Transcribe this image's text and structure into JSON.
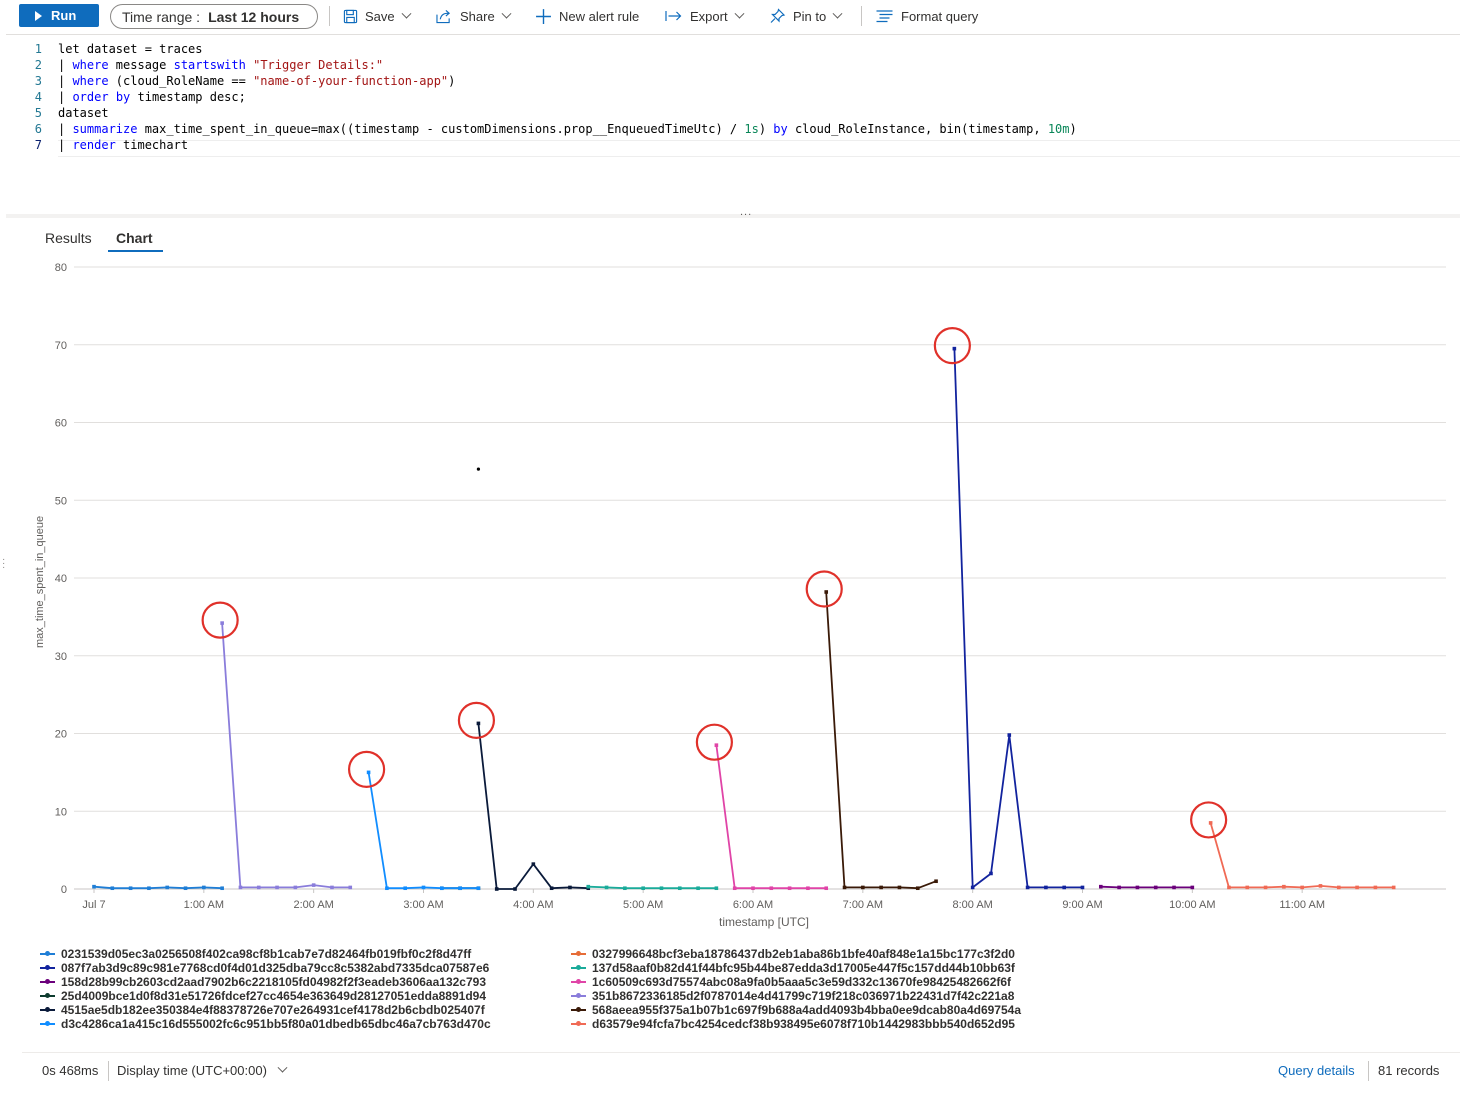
{
  "toolbar": {
    "run_label": "Run",
    "time_range_label": "Time range :",
    "time_range_value": "Last 12 hours",
    "save_label": "Save",
    "share_label": "Share",
    "new_alert_label": "New alert rule",
    "export_label": "Export",
    "pin_label": "Pin to",
    "format_label": "Format query"
  },
  "editor": {
    "line_numbers": [
      "1",
      "2",
      "3",
      "4",
      "5",
      "6",
      "7"
    ],
    "lines": [
      [
        {
          "t": "let dataset = traces",
          "c": "plain"
        }
      ],
      [
        {
          "t": "| ",
          "c": "plain"
        },
        {
          "t": "where",
          "c": "kw"
        },
        {
          "t": " message ",
          "c": "plain"
        },
        {
          "t": "startswith",
          "c": "kw"
        },
        {
          "t": " ",
          "c": "plain"
        },
        {
          "t": "\"Trigger Details:\"",
          "c": "str"
        }
      ],
      [
        {
          "t": "| ",
          "c": "plain"
        },
        {
          "t": "where",
          "c": "kw"
        },
        {
          "t": " (cloud_RoleName == ",
          "c": "plain"
        },
        {
          "t": "\"name-of-your-function-app\"",
          "c": "str"
        },
        {
          "t": ")",
          "c": "plain"
        }
      ],
      [
        {
          "t": "| ",
          "c": "plain"
        },
        {
          "t": "order",
          "c": "kw"
        },
        {
          "t": " ",
          "c": "plain"
        },
        {
          "t": "by",
          "c": "kw"
        },
        {
          "t": " timestamp desc;",
          "c": "plain"
        }
      ],
      [
        {
          "t": "dataset",
          "c": "plain"
        }
      ],
      [
        {
          "t": "| ",
          "c": "plain"
        },
        {
          "t": "summarize",
          "c": "kw"
        },
        {
          "t": " max_time_spent_in_queue=max((timestamp - customDimensions.prop__EnqueuedTimeUtc) / ",
          "c": "plain"
        },
        {
          "t": "1s",
          "c": "num"
        },
        {
          "t": ") ",
          "c": "plain"
        },
        {
          "t": "by",
          "c": "kw"
        },
        {
          "t": " cloud_RoleInstance, bin(timestamp, ",
          "c": "plain"
        },
        {
          "t": "10m",
          "c": "num"
        },
        {
          "t": ")",
          "c": "plain"
        }
      ],
      [
        {
          "t": "| ",
          "c": "plain"
        },
        {
          "t": "render",
          "c": "kw"
        },
        {
          "t": " timechart",
          "c": "plain"
        }
      ]
    ],
    "splitter_label": "..."
  },
  "tabs": [
    {
      "label": "Results",
      "selected": false
    },
    {
      "label": "Chart",
      "selected": true
    }
  ],
  "chart_data": {
    "type": "line",
    "xlabel": "timestamp [UTC]",
    "ylabel": "max_time_spent_in_queue",
    "ylim": [
      0,
      80
    ],
    "yticks": [
      "0",
      "10",
      "20",
      "30",
      "40",
      "50",
      "60",
      "70",
      "80"
    ],
    "xticks": [
      "Jul 7",
      "1:00 AM",
      "2:00 AM",
      "3:00 AM",
      "4:00 AM",
      "5:00 AM",
      "6:00 AM",
      "7:00 AM",
      "8:00 AM",
      "9:00 AM",
      "10:00 AM",
      "11:00 AM"
    ],
    "x_unit": "minutes after Jul 7 00:00 UTC",
    "grid": true,
    "legend_position": "bottom",
    "series": [
      {
        "name": "0231539d05ec3a0256508f402ca98cf8b1cab7e7d82464fb019fbf0c2f8d47ff",
        "color": "#1f7ed6",
        "points": [
          [
            0,
            0.3
          ],
          [
            10,
            0.1
          ],
          [
            20,
            0.1
          ],
          [
            30,
            0.1
          ],
          [
            40,
            0.2
          ],
          [
            50,
            0.1
          ],
          [
            60,
            0.2
          ],
          [
            70,
            0.1
          ]
        ]
      },
      {
        "name": "087f7ab3d9c89c981e7768cd0f4d01d325dba79cc8c5382abd7335dca07587e6",
        "color": "#12239e",
        "points": [
          [
            470,
            69.5
          ],
          [
            480,
            0.2
          ],
          [
            490,
            2
          ],
          [
            500,
            19.8
          ],
          [
            510,
            0.2
          ],
          [
            520,
            0.2
          ],
          [
            530,
            0.2
          ],
          [
            540,
            0.2
          ]
        ]
      },
      {
        "name": "158d28b99cb2603cd2aad7902b6c2218105fd04982f2f3eadeb3606aa132c793",
        "color": "#6b007b",
        "points": [
          [
            550,
            0.3
          ],
          [
            560,
            0.2
          ],
          [
            570,
            0.2
          ],
          [
            580,
            0.2
          ],
          [
            590,
            0.2
          ],
          [
            600,
            0.2
          ]
        ]
      },
      {
        "name": "25d4009bce1d0f8d31e51726fdcef27cc4654e363649d28127051edda8891d94",
        "color": "#0d3b2e",
        "points": [
          [
            190,
            0.1
          ],
          [
            200,
            0.1
          ],
          [
            210,
            0.1
          ]
        ]
      },
      {
        "name": "4515ae5db182ee350384e4f88378726e707e264931cef4178d2b6cbdb025407f",
        "color": "#0a1a3a",
        "points": [
          [
            210,
            21.3
          ],
          [
            220,
            0
          ],
          [
            230,
            0
          ],
          [
            240,
            3.2
          ],
          [
            250,
            0.1
          ],
          [
            260,
            0.2
          ],
          [
            270,
            0.1
          ]
        ]
      },
      {
        "name": "d3c4286ca1a415c16d555002fc6c951bb5f80a01dbedb65dbc46a7cb763d470c",
        "color": "#118dff",
        "points": [
          [
            150,
            15
          ],
          [
            160,
            0.1
          ],
          [
            170,
            0.1
          ],
          [
            180,
            0.2
          ],
          [
            190,
            0.1
          ],
          [
            200,
            0.1
          ],
          [
            210,
            0.1
          ]
        ]
      },
      {
        "name": "0327996648bcf3eba18786437db2eb1aba86b1bfe40af848e1a15bc177c3f2d0",
        "color": "#e66c37",
        "points": []
      },
      {
        "name": "137d58aaf0b82d41f44bfc95b44be87edda3d17005e447f5c157dd44b10bb63f",
        "color": "#1aab9a",
        "points": [
          [
            270,
            0.3
          ],
          [
            280,
            0.2
          ],
          [
            290,
            0.1
          ],
          [
            300,
            0.1
          ],
          [
            310,
            0.1
          ],
          [
            320,
            0.1
          ],
          [
            330,
            0.1
          ],
          [
            340,
            0.1
          ]
        ]
      },
      {
        "name": "1c60509c693d75574abc08a9fa0b5aaa5c3e59d332c13670fe98425482662f6f",
        "color": "#e044a7",
        "points": [
          [
            340,
            18.5
          ],
          [
            350,
            0.1
          ],
          [
            360,
            0.1
          ],
          [
            370,
            0.1
          ],
          [
            380,
            0.1
          ],
          [
            390,
            0.1
          ],
          [
            400,
            0.1
          ]
        ]
      },
      {
        "name": "351b8672336185d2f0787014e4d41799c719f218c036971b22431d7f42c221a8",
        "color": "#8a7ddb",
        "points": [
          [
            70,
            34.2
          ],
          [
            80,
            0.2
          ],
          [
            90,
            0.2
          ],
          [
            100,
            0.2
          ],
          [
            110,
            0.2
          ],
          [
            120,
            0.5
          ],
          [
            130,
            0.2
          ],
          [
            140,
            0.2
          ]
        ]
      },
      {
        "name": "568aeea955f375a1b07b1c697f9b688a4add4093b4bba0ee9dcab80a4d69754a",
        "color": "#3a1a08",
        "points": [
          [
            400,
            38.2
          ],
          [
            410,
            0.2
          ],
          [
            420,
            0.2
          ],
          [
            430,
            0.2
          ],
          [
            440,
            0.2
          ],
          [
            450,
            0.1
          ],
          [
            460,
            1
          ]
        ]
      },
      {
        "name": "d63579e94fcfa7bc4254cedcf38b938495e6078f710b1442983bbb540d652d95",
        "color": "#f06a55",
        "points": [
          [
            610,
            8.5
          ],
          [
            620,
            0.2
          ],
          [
            630,
            0.2
          ],
          [
            640,
            0.2
          ],
          [
            650,
            0.3
          ],
          [
            660,
            0.2
          ],
          [
            670,
            0.4
          ],
          [
            680,
            0.2
          ],
          [
            690,
            0.2
          ],
          [
            700,
            0.2
          ],
          [
            710,
            0.2
          ]
        ]
      }
    ],
    "stray_points": [
      [
        210,
        54
      ]
    ],
    "annotations": [
      {
        "type": "circle",
        "color": "#e0312a",
        "at": [
          70,
          34.2
        ]
      },
      {
        "type": "circle",
        "color": "#e0312a",
        "at": [
          150,
          15
        ]
      },
      {
        "type": "circle",
        "color": "#e0312a",
        "at": [
          210,
          21.3
        ]
      },
      {
        "type": "circle",
        "color": "#e0312a",
        "at": [
          340,
          18.5
        ]
      },
      {
        "type": "circle",
        "color": "#e0312a",
        "at": [
          400,
          38.2
        ]
      },
      {
        "type": "circle",
        "color": "#e0312a",
        "at": [
          470,
          69.5
        ]
      },
      {
        "type": "circle",
        "color": "#e0312a",
        "at": [
          610,
          8.5
        ]
      }
    ]
  },
  "footer": {
    "duration": "0s 468ms",
    "display_time": "Display time (UTC+00:00)",
    "query_details": "Query details",
    "records": "81 records"
  }
}
